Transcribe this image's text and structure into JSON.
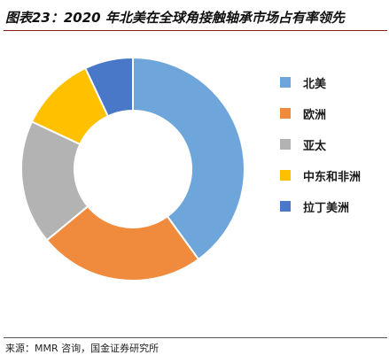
{
  "header": {
    "title": "图表23：2020 年北美在全球角接触轴承市场占有率领先"
  },
  "footer": {
    "source": "来源：MMR 咨询，国金证券研究所"
  },
  "chart_data": {
    "type": "pie",
    "style": "donut",
    "title": "",
    "legend_position": "right",
    "categories": [
      "北美",
      "欧洲",
      "亚太",
      "中东和非洲",
      "拉丁美洲"
    ],
    "values": [
      40,
      24,
      18,
      11,
      7
    ],
    "colors": [
      "#6ea6dc",
      "#f08a3c",
      "#b3b3b3",
      "#ffc000",
      "#4a78c8"
    ],
    "start_angle_deg": 0,
    "direction": "clockwise"
  }
}
